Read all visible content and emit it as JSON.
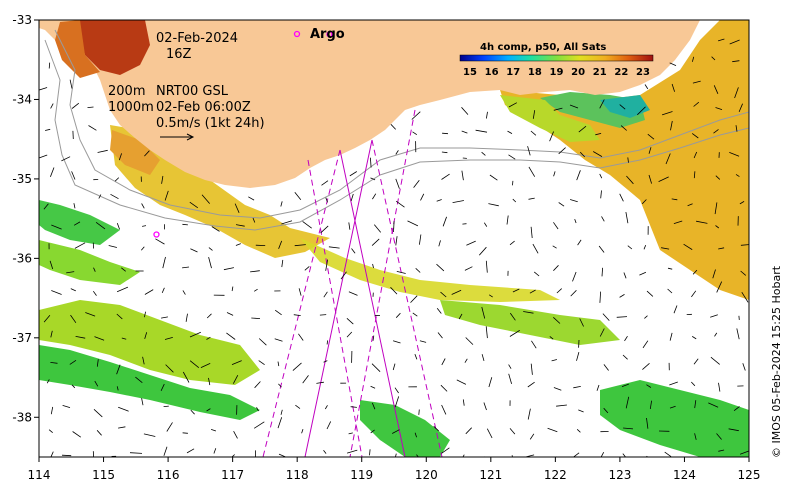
{
  "map": {
    "lon_range": [
      114,
      125
    ],
    "lat_range": [
      -38.5,
      -33
    ],
    "x_ticks": [
      "114",
      "115",
      "116",
      "117",
      "118",
      "119",
      "120",
      "121",
      "122",
      "123",
      "124",
      "125"
    ],
    "y_ticks": [
      "-33",
      "-34",
      "-35",
      "-36",
      "-37",
      "-38"
    ]
  },
  "annotations": {
    "date": "02-Feb-2024",
    "hour": "16Z",
    "depth_200": "200m",
    "depth_1000": "1000m",
    "product": "NRT00 GSL",
    "product_time": "02-Feb 06:00Z",
    "scale_vector": "0.5m/s (1kt 24h)",
    "argo_label": "Argo",
    "colorbar_title": "4h comp, p50, All Sats",
    "credit": "© IMOS 05-Feb-2024 15:25 Hobart"
  },
  "colorbar": {
    "labels": [
      "15",
      "16",
      "17",
      "18",
      "19",
      "20",
      "21",
      "22",
      "23"
    ],
    "colors": [
      "#00008b",
      "#0040ff",
      "#00b0ff",
      "#20e0a0",
      "#80e040",
      "#e0e020",
      "#f0b020",
      "#e06010",
      "#a01010"
    ]
  },
  "colors": {
    "land": "#f8c896",
    "ocean": "#ffffff",
    "argo_marker": "#ff00ff",
    "track": "#c000c0",
    "isobath": "#9a9a9a"
  },
  "argo_floats": [
    {
      "lon": 118.5,
      "lat": -33.18
    },
    {
      "lon": 115.82,
      "lat": -35.7
    }
  ]
}
